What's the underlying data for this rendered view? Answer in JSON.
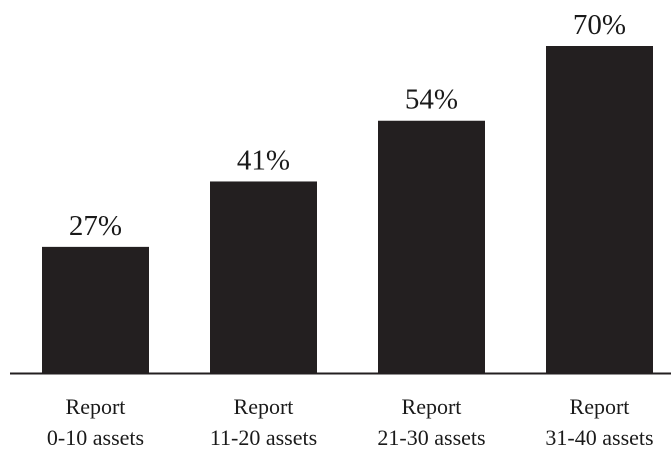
{
  "chart_data": {
    "type": "bar",
    "categories": [
      [
        "Report",
        "0-10 assets"
      ],
      [
        "Report",
        "11-20 assets"
      ],
      [
        "Report",
        "21-30 assets"
      ],
      [
        "Report",
        "31-40 assets"
      ]
    ],
    "values": [
      27,
      41,
      54,
      70
    ],
    "value_labels": [
      "27%",
      "41%",
      "54%",
      "70%"
    ],
    "value_unit": "%",
    "title": "",
    "xlabel": "",
    "ylabel": "",
    "ylim": [
      0,
      70
    ],
    "grid": false,
    "legend": "none",
    "bar_color": "#231f20",
    "axis_color": "#231f20",
    "text_color": "#1a1a1a"
  }
}
